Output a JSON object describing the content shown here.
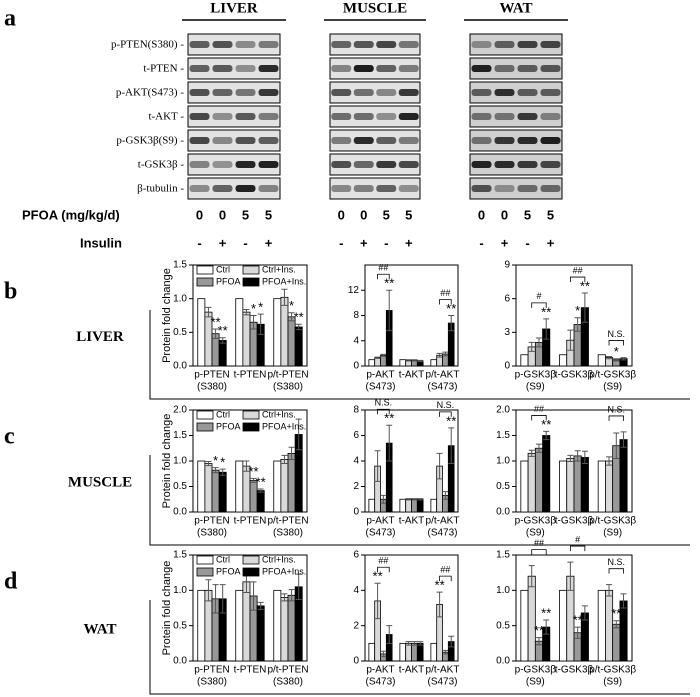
{
  "figure": {
    "panel_letters": [
      "a",
      "b",
      "c",
      "d"
    ]
  },
  "blots": {
    "tissues": [
      "LIVER",
      "MUSCLE",
      "WAT"
    ],
    "rows": [
      "p-PTEN(S380) -",
      "t-PTEN -",
      "p-AKT(S473) -",
      "t-AKT -",
      "p-GSK3β(S9) -",
      "t-GSK3β -",
      "β-tubulin -"
    ],
    "pfoa_label": "PFOA (mg/kg/d)",
    "pfoa_doses": [
      0,
      0,
      5,
      5
    ],
    "insulin_label": "Insulin",
    "insulin": [
      "-",
      "+",
      "-",
      "+"
    ]
  },
  "chart_data": [
    {
      "type": "bar",
      "ylabel": "Protein fold change",
      "legend": true,
      "categories": [
        [
          "p-PTEN",
          "(S380)"
        ],
        [
          "t-PTEN"
        ],
        [
          "p/t-PTEN",
          "(S380)"
        ]
      ],
      "series": [
        {
          "name": "Ctrl",
          "color": "#ffffff",
          "values": [
            1,
            1,
            1
          ]
        },
        {
          "name": "Ctrl+Ins.",
          "color": "#d9d9d9",
          "values": [
            0.8,
            0.8,
            1.02
          ],
          "errors": [
            0.07,
            0.04,
            0.12
          ]
        },
        {
          "name": "PFOA",
          "color": "#999999",
          "values": [
            0.48,
            0.65,
            0.73
          ],
          "errors": [
            0.07,
            0.1,
            0.06
          ]
        },
        {
          "name": "PFOA+Ins.",
          "color": "#000000",
          "values": [
            0.38,
            0.62,
            0.58
          ],
          "errors": [
            0.04,
            0.15,
            0.04
          ]
        }
      ],
      "ylim": [
        0,
        1.5
      ],
      "yticks": [
        {
          "value": 0,
          "label": "0.0"
        },
        {
          "value": 0.5,
          "label": "0.5"
        },
        {
          "value": 1,
          "label": "1.0"
        },
        {
          "value": 1.5,
          "label": "1.5"
        }
      ],
      "annotations": [
        {
          "text": "**",
          "category": 0,
          "series": 2
        },
        {
          "text": "**",
          "category": 0,
          "series": 3
        },
        {
          "text": "*",
          "category": 1,
          "series": 2
        },
        {
          "text": "*",
          "category": 1,
          "series": 3
        },
        {
          "text": "*",
          "category": 2,
          "series": 2
        },
        {
          "text": "**",
          "category": 2,
          "series": 3
        }
      ]
    },
    {
      "type": "bar",
      "categories": [
        [
          "p-AKT",
          "(S473)"
        ],
        [
          "t-AKT"
        ],
        [
          "p/t-AKT",
          "(S473)"
        ]
      ],
      "series": [
        {
          "color": "#ffffff",
          "values": [
            1,
            1,
            1
          ]
        },
        {
          "color": "#d9d9d9",
          "values": [
            1.3,
            0.9,
            1.7
          ],
          "errors": [
            0.1,
            0.1,
            0.3
          ]
        },
        {
          "color": "#999999",
          "values": [
            1.7,
            0.9,
            1.9
          ],
          "errors": [
            0.15,
            0.1,
            0.3
          ]
        },
        {
          "color": "#000000",
          "values": [
            8.8,
            0.8,
            6.8
          ],
          "errors": [
            3.2,
            0.1,
            1.2
          ]
        }
      ],
      "ylim": [
        0,
        16
      ],
      "yticks": [
        0,
        4,
        8,
        12
      ],
      "annotations": [
        {
          "text": "**",
          "category": 0,
          "series": 3
        },
        {
          "text": "**",
          "category": 2,
          "series": 3
        }
      ],
      "brackets": [
        {
          "text": "##",
          "category": 0,
          "series": [
            1,
            3
          ]
        },
        {
          "text": "##",
          "category": 2,
          "series": [
            1,
            3
          ]
        }
      ]
    },
    {
      "type": "bar",
      "categories": [
        [
          "p-GSK3β",
          "(S9)"
        ],
        [
          "t-GSK3β"
        ],
        [
          "p/t-GSK3β",
          "(S9)"
        ]
      ],
      "series": [
        {
          "color": "#ffffff",
          "values": [
            1,
            1,
            1
          ]
        },
        {
          "color": "#d9d9d9",
          "values": [
            1.7,
            2.3,
            0.75
          ],
          "errors": [
            0.4,
            0.9,
            0.1
          ]
        },
        {
          "color": "#999999",
          "values": [
            2.1,
            3.7,
            0.55
          ],
          "errors": [
            0.4,
            0.6,
            0.1
          ]
        },
        {
          "color": "#000000",
          "values": [
            3.3,
            5.2,
            0.65
          ],
          "errors": [
            0.9,
            1.3,
            0.1
          ]
        }
      ],
      "ylim": [
        0,
        9
      ],
      "yticks": [
        0,
        3,
        6,
        9
      ],
      "annotations": [
        {
          "text": "**",
          "category": 0,
          "series": 3
        },
        {
          "text": "*",
          "category": 1,
          "series": 2
        },
        {
          "text": "**",
          "category": 1,
          "series": 3
        },
        {
          "text": "*",
          "category": 2,
          "series": 2
        }
      ],
      "brackets": [
        {
          "text": "#",
          "category": 0,
          "series": [
            1,
            3
          ]
        },
        {
          "text": "##",
          "category": 1,
          "series": [
            1,
            3
          ]
        },
        {
          "text": "N.S.",
          "category": 2,
          "series": [
            1,
            3
          ]
        }
      ]
    },
    {
      "type": "bar",
      "ylabel": "Protein fold change",
      "legend": true,
      "categories": [
        [
          "p-PTEN",
          "(S380)"
        ],
        [
          "t-PTEN"
        ],
        [
          "p/t-PTEN",
          "(S380)"
        ]
      ],
      "series": [
        {
          "name": "Ctrl",
          "color": "#ffffff",
          "values": [
            1,
            1,
            1
          ]
        },
        {
          "name": "Ctrl+Ins.",
          "color": "#d9d9d9",
          "values": [
            0.95,
            0.9,
            1.03
          ],
          "errors": [
            0.04,
            0.1,
            0.08
          ]
        },
        {
          "name": "PFOA",
          "color": "#999999",
          "values": [
            0.82,
            0.62,
            1.15
          ],
          "errors": [
            0.05,
            0.04,
            0.12
          ]
        },
        {
          "name": "PFOA+Ins.",
          "color": "#000000",
          "values": [
            0.78,
            0.42,
            1.52
          ],
          "errors": [
            0.06,
            0.03,
            0.3
          ]
        }
      ],
      "ylim": [
        0,
        2
      ],
      "yticks": [
        {
          "value": 0,
          "label": "0.0"
        },
        {
          "value": 0.5,
          "label": "0.5"
        },
        {
          "value": 1,
          "label": "1.0"
        },
        {
          "value": 1.5,
          "label": "1.5"
        },
        {
          "value": 2,
          "label": "2.0"
        }
      ],
      "annotations": [
        {
          "text": "*",
          "category": 0,
          "series": 2
        },
        {
          "text": "*",
          "category": 0,
          "series": 3
        },
        {
          "text": "**",
          "category": 1,
          "series": 2
        },
        {
          "text": "**",
          "category": 1,
          "series": 3
        }
      ]
    },
    {
      "type": "bar",
      "categories": [
        [
          "p-AKT",
          "(S473)"
        ],
        [
          "t-AKT"
        ],
        [
          "p/t-AKT",
          "(S473)"
        ]
      ],
      "series": [
        {
          "color": "#ffffff",
          "values": [
            1,
            1,
            1
          ]
        },
        {
          "color": "#d9d9d9",
          "values": [
            3.6,
            1,
            3.6
          ],
          "errors": [
            1.2,
            0.05,
            1
          ]
        },
        {
          "color": "#999999",
          "values": [
            1,
            1,
            1.3
          ],
          "errors": [
            0.3,
            0.05,
            0.3
          ]
        },
        {
          "color": "#000000",
          "values": [
            5.4,
            1,
            5.2
          ],
          "errors": [
            1.4,
            0.05,
            1.4
          ]
        }
      ],
      "ylim": [
        0,
        8
      ],
      "yticks": [
        0,
        2,
        4,
        6,
        8
      ],
      "annotations": [
        {
          "text": "**",
          "category": 0,
          "series": 3
        },
        {
          "text": "**",
          "category": 2,
          "series": 3
        }
      ],
      "brackets": [
        {
          "text": "N.S.",
          "category": 0,
          "series": [
            1,
            3
          ]
        },
        {
          "text": "N.S.",
          "category": 2,
          "series": [
            1,
            3
          ]
        }
      ]
    },
    {
      "type": "bar",
      "categories": [
        [
          "p-GSK3β",
          "(S9)"
        ],
        [
          "t-GSK3β"
        ],
        [
          "p/t-GSK3β",
          "(S9)"
        ]
      ],
      "series": [
        {
          "color": "#ffffff",
          "values": [
            1,
            1,
            1
          ]
        },
        {
          "color": "#d9d9d9",
          "values": [
            1.15,
            1.05,
            1
          ],
          "errors": [
            0.06,
            0.06,
            0.08
          ]
        },
        {
          "color": "#999999",
          "values": [
            1.25,
            1.1,
            1.3
          ],
          "errors": [
            0.08,
            0.1,
            0.25
          ]
        },
        {
          "color": "#000000",
          "values": [
            1.5,
            1.07,
            1.42
          ],
          "errors": [
            0.08,
            0.12,
            0.15
          ]
        }
      ],
      "ylim": [
        0,
        2
      ],
      "yticks": [
        {
          "value": 0,
          "label": "0.0"
        },
        {
          "value": 0.5,
          "label": "0.5"
        },
        {
          "value": 1,
          "label": "1.0"
        },
        {
          "value": 1.5,
          "label": "1.5"
        },
        {
          "value": 2,
          "label": "2.0"
        }
      ],
      "annotations": [
        {
          "text": "**",
          "category": 0,
          "series": 3
        }
      ],
      "brackets": [
        {
          "text": "##",
          "category": 0,
          "series": [
            1,
            3
          ]
        },
        {
          "text": "N.S.",
          "category": 2,
          "series": [
            1,
            3
          ]
        }
      ]
    },
    {
      "type": "bar",
      "ylabel": "Protein fold change",
      "legend": true,
      "categories": [
        [
          "p-PTEN",
          "(S380)"
        ],
        [
          "t-PTEN"
        ],
        [
          "p/t-PTEN",
          "(S380)"
        ]
      ],
      "series": [
        {
          "name": "Ctrl",
          "color": "#ffffff",
          "values": [
            1,
            1,
            1
          ]
        },
        {
          "name": "Ctrl+Ins.",
          "color": "#d9d9d9",
          "values": [
            1,
            1.12,
            0.9
          ],
          "errors": [
            0.15,
            0.15,
            0.05
          ]
        },
        {
          "name": "PFOA",
          "color": "#999999",
          "values": [
            0.88,
            0.92,
            0.93
          ],
          "errors": [
            0.2,
            0.2,
            0.08
          ]
        },
        {
          "name": "PFOA+Ins.",
          "color": "#000000",
          "values": [
            0.88,
            0.78,
            1.05
          ],
          "errors": [
            0.2,
            0.05,
            0.18
          ]
        }
      ],
      "ylim": [
        0,
        1.5
      ],
      "yticks": [
        {
          "value": 0,
          "label": "0.0"
        },
        {
          "value": 0.5,
          "label": "0.5"
        },
        {
          "value": 1,
          "label": "1.0"
        },
        {
          "value": 1.5,
          "label": "1.5"
        }
      ]
    },
    {
      "type": "bar",
      "categories": [
        [
          "p-AKT",
          "(S473)"
        ],
        [
          "t-AKT"
        ],
        [
          "p/t-AKT",
          "(S473)"
        ]
      ],
      "series": [
        {
          "color": "#ffffff",
          "values": [
            1,
            1,
            1
          ]
        },
        {
          "color": "#d9d9d9",
          "values": [
            3.4,
            1,
            3.2
          ],
          "errors": [
            1,
            0.1,
            0.7
          ]
        },
        {
          "color": "#999999",
          "values": [
            0.4,
            1,
            0.5
          ],
          "errors": [
            0.15,
            0.1,
            0.1
          ]
        },
        {
          "color": "#000000",
          "values": [
            1.5,
            1,
            1.1
          ],
          "errors": [
            0.5,
            0.1,
            0.3
          ]
        }
      ],
      "ylim": [
        0,
        6
      ],
      "yticks": [
        0,
        2,
        4,
        6
      ],
      "annotations": [
        {
          "text": "**",
          "category": 0,
          "series": 1
        },
        {
          "text": "**",
          "category": 2,
          "series": 1
        }
      ],
      "brackets": [
        {
          "text": "##",
          "category": 0,
          "series": [
            1,
            3
          ]
        },
        {
          "text": "##",
          "category": 2,
          "series": [
            1,
            3
          ]
        }
      ]
    },
    {
      "type": "bar",
      "categories": [
        [
          "p-GSK3β",
          "(S9)"
        ],
        [
          "t-GSK3β"
        ],
        [
          "p/t-GSK3β",
          "(S9)"
        ]
      ],
      "series": [
        {
          "color": "#ffffff",
          "values": [
            1,
            1,
            1
          ]
        },
        {
          "color": "#d9d9d9",
          "values": [
            1.2,
            1.2,
            1
          ],
          "errors": [
            0.15,
            0.2,
            0.08
          ]
        },
        {
          "color": "#999999",
          "values": [
            0.28,
            0.4,
            0.52
          ],
          "errors": [
            0.05,
            0.08,
            0.05
          ]
        },
        {
          "color": "#000000",
          "values": [
            0.48,
            0.68,
            0.85
          ],
          "errors": [
            0.1,
            0.1,
            0.1
          ]
        }
      ],
      "ylim": [
        0,
        1.5
      ],
      "yticks": [
        {
          "value": 0,
          "label": "0.0"
        },
        {
          "value": 0.5,
          "label": "0.5"
        },
        {
          "value": 1,
          "label": "1.0"
        },
        {
          "value": 1.5,
          "label": "1.5"
        }
      ],
      "annotations": [
        {
          "text": "**",
          "category": 0,
          "series": 2
        },
        {
          "text": "**",
          "category": 0,
          "series": 3
        },
        {
          "text": "**",
          "category": 1,
          "series": 2
        },
        {
          "text": "**",
          "category": 2,
          "series": 2
        }
      ],
      "brackets": [
        {
          "text": "##",
          "category": 0,
          "series": [
            1,
            3
          ]
        },
        {
          "text": "#",
          "category": 1,
          "series": [
            1,
            3
          ]
        },
        {
          "text": "N.S.",
          "category": 2,
          "series": [
            1,
            3
          ]
        }
      ]
    }
  ]
}
